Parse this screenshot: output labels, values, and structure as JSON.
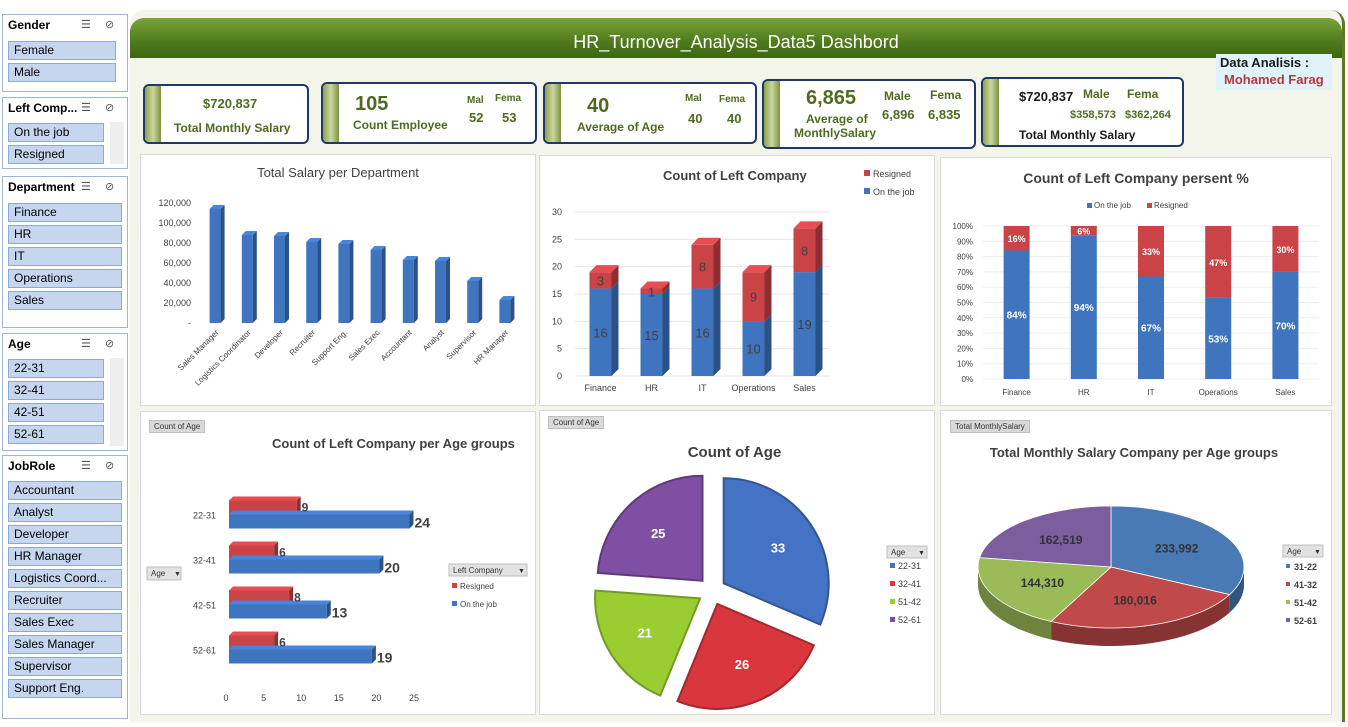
{
  "header": {
    "title": "HR_Turnover_Analysis_Data5 Dashbord"
  },
  "author": {
    "label": "Data Analisis :",
    "name": "Mohamed Farag"
  },
  "slicers": {
    "gender": {
      "title": "Gender",
      "items": [
        "Female",
        "Male"
      ]
    },
    "left": {
      "title": "Left Comp...",
      "items": [
        "On the job",
        "Resigned"
      ]
    },
    "department": {
      "title": "Department",
      "items": [
        "Finance",
        "HR",
        "IT",
        "Operations",
        "Sales"
      ]
    },
    "age": {
      "title": "Age",
      "items": [
        "22-31",
        "32-41",
        "42-51",
        "52-61"
      ]
    },
    "jobrole": {
      "title": "JobRole",
      "items": [
        "Accountant",
        "Analyst",
        "Developer",
        "HR Manager",
        "Logistics Coord...",
        "Recruiter",
        "Sales Exec",
        "Sales Manager",
        "Supervisor",
        "Support Eng."
      ]
    }
  },
  "kpis": {
    "k1": {
      "value": "$720,837",
      "label": "Total Monthly Salary"
    },
    "k2": {
      "value": "105",
      "label": "Count Employee",
      "male_label": "Mal",
      "male": "52",
      "female_label": "Fema",
      "female": "53"
    },
    "k3": {
      "value": "40",
      "label": "Average of Age",
      "male_label": "Mal",
      "male": "40",
      "female_label": "Fema",
      "female": "40"
    },
    "k4": {
      "value": "6,865",
      "label1": "Average of",
      "label2": "MonthlySalary",
      "male_label": "Male",
      "male": "6,896",
      "female_label": "Fema",
      "female": "6,835"
    },
    "k5": {
      "value": "$720,837",
      "label": "Total Monthly Salary",
      "male_label": "Male",
      "male": "$358,573",
      "female_label": "Fema",
      "female": "$362,264"
    }
  },
  "tags": {
    "count_age": "Count of Age",
    "total_monthly": "Total MonthlySalary",
    "age_filter": "Age",
    "left_filter": "Left Company"
  },
  "chart_data": [
    {
      "type": "bar",
      "title": "Total Salary  per Department",
      "categories": [
        "Sales Manager",
        "Logistics Coordinator",
        "Developer",
        "Recruiter",
        "Support Eng.",
        "Sales Exec",
        "Accountant",
        "Analyst",
        "Supervisor",
        "HR Manager"
      ],
      "values": [
        114000,
        88000,
        87000,
        81000,
        79000,
        73000,
        63000,
        62000,
        42000,
        23000
      ],
      "ytick_labels": [
        "-",
        "20,000",
        "40,000",
        "60,000",
        "80,000",
        "100,000",
        "120,000"
      ],
      "ylim": [
        0,
        120000
      ]
    },
    {
      "type": "bar",
      "title": "Count of Left Company",
      "stacked": true,
      "categories": [
        "Finance",
        "HR",
        "IT",
        "Operations",
        "Sales"
      ],
      "series": [
        {
          "name": "On the job",
          "values": [
            16,
            15,
            16,
            10,
            19
          ]
        },
        {
          "name": "Resigned",
          "values": [
            3,
            1,
            8,
            9,
            8
          ]
        }
      ],
      "ylim": [
        0,
        30
      ],
      "yticks": [
        0,
        5,
        10,
        15,
        20,
        25,
        30
      ]
    },
    {
      "type": "bar",
      "title": "Count of Left Company persent %",
      "stacked": true,
      "categories": [
        "Finance",
        "HR",
        "IT",
        "Operations",
        "Sales"
      ],
      "series": [
        {
          "name": "On the job",
          "values": [
            84,
            94,
            67,
            53,
            70
          ]
        },
        {
          "name": "Resigned",
          "values": [
            16,
            6,
            33,
            47,
            30
          ]
        }
      ],
      "ylim": [
        0,
        100
      ]
    },
    {
      "type": "bar",
      "title": "Count of Left Company per Age groups",
      "orientation": "horizontal",
      "categories": [
        "22-31",
        "32-41",
        "42-51",
        "52-61"
      ],
      "series": [
        {
          "name": "Resigned",
          "values": [
            9,
            6,
            8,
            6
          ]
        },
        {
          "name": "On the job",
          "values": [
            24,
            20,
            13,
            19
          ]
        }
      ],
      "xlim": [
        0,
        25
      ],
      "xticks": [
        0,
        5,
        10,
        15,
        20,
        25
      ]
    },
    {
      "type": "pie",
      "title": "Count of Age",
      "labels": [
        "22-31",
        "32-41",
        "51-42",
        "52-61"
      ],
      "values": [
        33,
        26,
        21,
        25
      ],
      "colors": [
        "#4472c4",
        "#d9363e",
        "#9acd32",
        "#7e4fa3"
      ]
    },
    {
      "type": "pie",
      "title": "Total Monthly Salary Company per Age groups",
      "labels": [
        "31-22",
        "41-32",
        "51-42",
        "52-61"
      ],
      "values": [
        233992,
        180016,
        144310,
        162519
      ],
      "value_labels": [
        "233,992",
        "180,016",
        "144,310",
        "162,519"
      ],
      "colors": [
        "#4a7ab5",
        "#c0494a",
        "#9bbb59",
        "#7c5e9e"
      ]
    }
  ]
}
